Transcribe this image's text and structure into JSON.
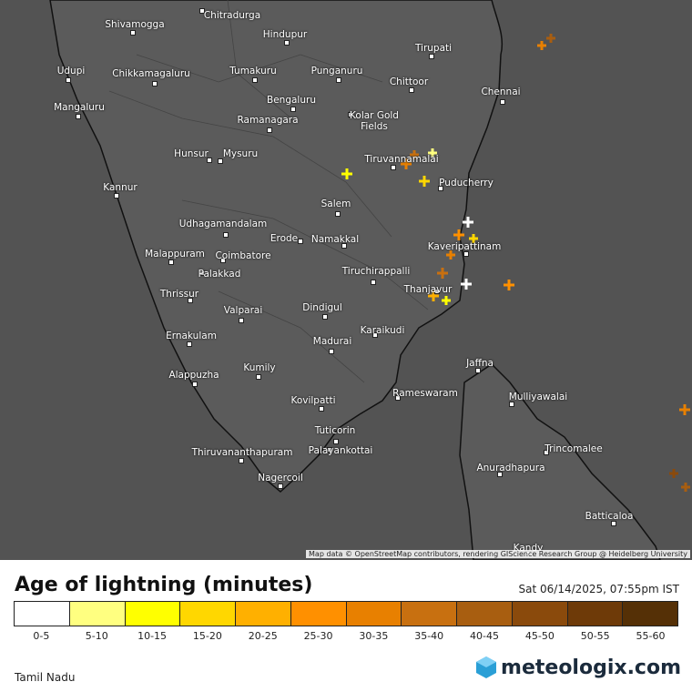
{
  "map": {
    "cities": [
      "Shivamogga",
      "Chitradurga",
      "Hindupur",
      "Tirupati",
      "Udupi",
      "Chikkamagaluru",
      "Tumakuru",
      "Punganuru",
      "Chittoor",
      "Chennai",
      "Mangaluru",
      "Bengaluru",
      "Ramanagara",
      "Kolar Gold Fields",
      "Hunsur",
      "Mysuru",
      "Tiruvannamalai",
      "Kannur",
      "Puducherry",
      "Salem",
      "Udhagamandalam",
      "Erode",
      "Namakkal",
      "Kaveripattinam",
      "Malappuram",
      "Coimbatore",
      "Tiruchirappalli",
      "Palakkad",
      "Thrissur",
      "Thanjavur",
      "Valparai",
      "Dindigul",
      "Karaikudi",
      "Ernakulam",
      "Madurai",
      "Jaffna",
      "Kumily",
      "Alappuzha",
      "Rameswaram",
      "Mulliyawalai",
      "Kovilpatti",
      "Tuticorin",
      "Trincomalee",
      "Palayankottai",
      "Thiruvananthapuram",
      "Anuradhapura",
      "Nagercoil",
      "Batticaloa",
      "Kandy"
    ],
    "attribution": "Map data © OpenStreetMap contributors, rendering GIScience Research Group @ Heidelberg University"
  },
  "legend": {
    "title": "Age of lightning (minutes)",
    "timestamp": "Sat 06/14/2025, 07:55pm IST",
    "items": [
      {
        "label": "0-5",
        "color": "#ffffff"
      },
      {
        "label": "5-10",
        "color": "#ffff80"
      },
      {
        "label": "10-15",
        "color": "#ffff00"
      },
      {
        "label": "15-20",
        "color": "#ffd700"
      },
      {
        "label": "20-25",
        "color": "#ffb000"
      },
      {
        "label": "25-30",
        "color": "#ff9000"
      },
      {
        "label": "30-35",
        "color": "#e88000"
      },
      {
        "label": "35-40",
        "color": "#c87010"
      },
      {
        "label": "40-45",
        "color": "#a85e10"
      },
      {
        "label": "45-50",
        "color": "#8a4a0c"
      },
      {
        "label": "50-55",
        "color": "#6e3a08"
      },
      {
        "label": "55-60",
        "color": "#553006"
      }
    ]
  },
  "footer": {
    "region": "Tamil Nadu",
    "brand": "meteologix.com"
  }
}
